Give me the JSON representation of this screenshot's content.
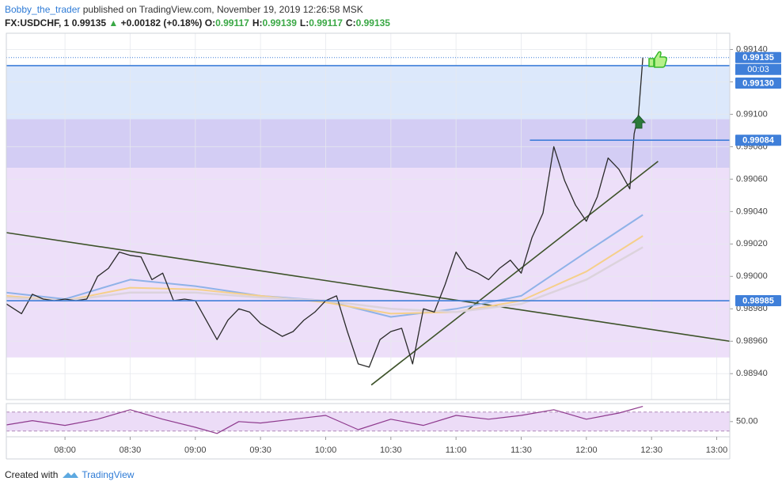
{
  "header": {
    "author": "Bobby_the_trader",
    "published": "published on TradingView.com, November 19, 2019 12:26:58 MSK",
    "symbol": "FX:USDCHF, 1",
    "last": "0.99135",
    "arrow": "▲",
    "change": "+0.00182 (+0.18%)",
    "ohlc": [
      {
        "label": "O:",
        "value": "0.99117"
      },
      {
        "label": "H:",
        "value": "0.99139"
      },
      {
        "label": "L:",
        "value": "0.99117"
      },
      {
        "label": "C:",
        "value": "0.99135"
      }
    ]
  },
  "chart_data": [
    {
      "type": "line",
      "xlim": [
        "07:33",
        "13:06"
      ],
      "xticks": [
        "08:00",
        "08:30",
        "09:00",
        "09:30",
        "10:00",
        "10:30",
        "11:00",
        "11:30",
        "12:00",
        "12:30",
        "13:00"
      ],
      "ylim": [
        0.98924,
        0.9915
      ],
      "yticks": [
        {
          "value": 0.9894,
          "label": "0.98940"
        },
        {
          "value": 0.9896,
          "label": "0.98960"
        },
        {
          "value": 0.9898,
          "label": "0.98980"
        },
        {
          "value": 0.99,
          "label": "0.99000"
        },
        {
          "value": 0.9902,
          "label": "0.99020"
        },
        {
          "value": 0.9904,
          "label": "0.99040"
        },
        {
          "value": 0.9906,
          "label": "0.99060"
        },
        {
          "value": 0.9908,
          "label": "0.99080"
        },
        {
          "value": 0.991,
          "label": "0.99100"
        },
        {
          "value": 0.9912,
          "label": "0.99120"
        },
        {
          "value": 0.9914,
          "label": "0.99140"
        }
      ],
      "grid": true,
      "zones": [
        {
          "from": 0.9913,
          "to": 0.99097,
          "color": "#dce8fb"
        },
        {
          "from": 0.99097,
          "to": 0.99067,
          "color": "#d3cdf4"
        },
        {
          "from": 0.99067,
          "to": 0.9895,
          "color": "#eddff9"
        }
      ],
      "levels": [
        {
          "value": 0.9913,
          "label": "0.99130"
        },
        {
          "value": 0.99084,
          "label": "0.99084",
          "from": "11:34"
        },
        {
          "value": 0.98985,
          "label": "0.98985"
        }
      ],
      "last_price": {
        "value": 0.99135,
        "label": "0.99135",
        "countdown": "00:03"
      },
      "trendlines": [
        {
          "x": [
            "07:33",
            "13:06"
          ],
          "y": [
            0.99027,
            0.9896
          ]
        },
        {
          "x": [
            "10:21",
            "12:33"
          ],
          "y": [
            0.98933,
            0.99071
          ]
        }
      ],
      "trendline_color": "#3d5229",
      "series": [
        {
          "color": "#2a2a2a",
          "width": 1.3,
          "x": [
            "07:33",
            "07:40",
            "07:45",
            "07:50",
            "07:55",
            "08:00",
            "08:05",
            "08:10",
            "08:15",
            "08:20",
            "08:25",
            "08:30",
            "08:35",
            "08:40",
            "08:45",
            "08:50",
            "08:55",
            "09:00",
            "09:05",
            "09:10",
            "09:15",
            "09:20",
            "09:25",
            "09:30",
            "09:35",
            "09:40",
            "09:45",
            "09:50",
            "09:55",
            "10:00",
            "10:05",
            "10:10",
            "10:15",
            "10:20",
            "10:25",
            "10:30",
            "10:35",
            "10:40",
            "10:45",
            "10:50",
            "10:55",
            "11:00",
            "11:05",
            "11:10",
            "11:15",
            "11:20",
            "11:25",
            "11:30",
            "11:35",
            "11:40",
            "11:45",
            "11:50",
            "11:55",
            "12:00",
            "12:05",
            "12:10",
            "12:15",
            "12:20",
            "12:22",
            "12:24",
            "12:26"
          ],
          "values": [
            0.98983,
            0.98977,
            0.98989,
            0.98986,
            0.98985,
            0.98986,
            0.98985,
            0.98986,
            0.99,
            0.99005,
            0.99015,
            0.99013,
            0.99012,
            0.98998,
            0.99002,
            0.98985,
            0.98986,
            0.98985,
            0.98973,
            0.98961,
            0.98973,
            0.9898,
            0.98978,
            0.98971,
            0.98967,
            0.98963,
            0.98966,
            0.98973,
            0.98978,
            0.98985,
            0.98988,
            0.98966,
            0.98946,
            0.98944,
            0.98961,
            0.98966,
            0.98968,
            0.98946,
            0.9898,
            0.98978,
            0.98995,
            0.99015,
            0.99005,
            0.99002,
            0.98998,
            0.99005,
            0.9901,
            0.99002,
            0.99024,
            0.99039,
            0.9908,
            0.99059,
            0.99044,
            0.99034,
            0.99049,
            0.99073,
            0.99066,
            0.99054,
            0.99088,
            0.991,
            0.99135
          ]
        },
        {
          "color": "#8fb2e8",
          "width": 2,
          "x": [
            "07:33",
            "08:00",
            "08:30",
            "09:00",
            "09:30",
            "10:00",
            "10:30",
            "11:00",
            "11:30",
            "12:00",
            "12:26"
          ],
          "values": [
            0.9899,
            0.98986,
            0.98998,
            0.98994,
            0.98988,
            0.98985,
            0.98975,
            0.9898,
            0.98988,
            0.99015,
            0.99038
          ]
        },
        {
          "color": "#f5cf8a",
          "width": 2,
          "x": [
            "07:33",
            "08:00",
            "08:30",
            "09:00",
            "09:30",
            "10:00",
            "10:30",
            "11:00",
            "11:30",
            "12:00",
            "12:26"
          ],
          "values": [
            0.98988,
            0.98985,
            0.98993,
            0.98992,
            0.98988,
            0.98984,
            0.98977,
            0.98978,
            0.98985,
            0.99003,
            0.99025
          ]
        },
        {
          "color": "#dcd3dc",
          "width": 2.5,
          "x": [
            "07:33",
            "08:00",
            "08:30",
            "09:00",
            "09:30",
            "10:00",
            "10:30",
            "11:00",
            "11:30",
            "12:00",
            "12:26"
          ],
          "values": [
            0.98987,
            0.98985,
            0.9899,
            0.9899,
            0.98987,
            0.98985,
            0.9898,
            0.98978,
            0.98983,
            0.98998,
            0.99018
          ]
        }
      ]
    },
    {
      "type": "line",
      "xlim": [
        "07:33",
        "13:06"
      ],
      "ylim": [
        18,
        88
      ],
      "yticks": [
        {
          "value": 50,
          "label": "50.00"
        }
      ],
      "bands": [
        70,
        30
      ],
      "band_color": "#ecdcf7",
      "series": [
        {
          "color": "#8e3a8e",
          "width": 1.2,
          "x": [
            "07:33",
            "07:45",
            "08:00",
            "08:15",
            "08:30",
            "08:45",
            "09:00",
            "09:10",
            "09:20",
            "09:30",
            "09:45",
            "10:00",
            "10:15",
            "10:30",
            "10:45",
            "11:00",
            "11:15",
            "11:30",
            "11:45",
            "12:00",
            "12:15",
            "12:26"
          ],
          "values": [
            43,
            52,
            42,
            55,
            75,
            55,
            38,
            25,
            50,
            47,
            55,
            63,
            33,
            55,
            42,
            63,
            55,
            63,
            75,
            55,
            68,
            82
          ]
        }
      ]
    }
  ],
  "footer": {
    "created": "Created with",
    "brand": "TradingView"
  }
}
